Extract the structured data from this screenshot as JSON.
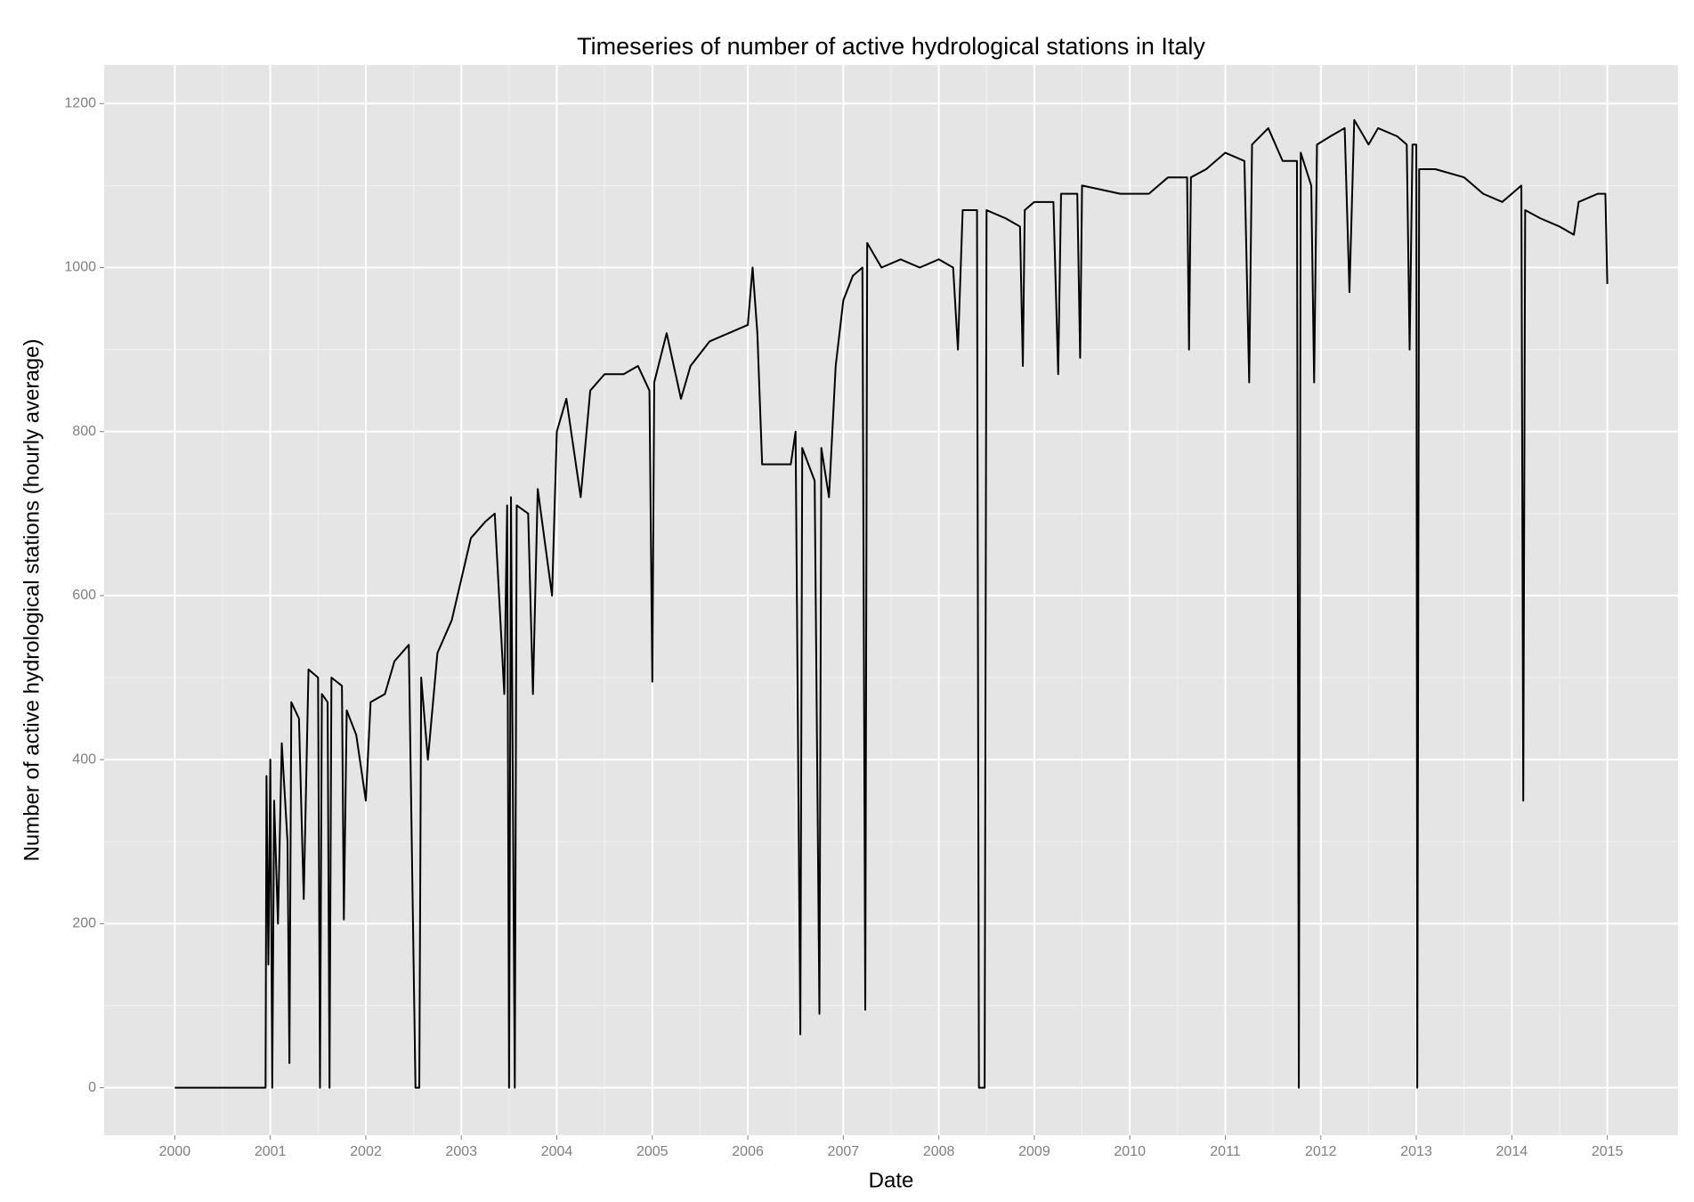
{
  "chart_data": {
    "type": "line",
    "title": "Timeseries of number of active hydrological stations in Italy",
    "x_label": "Date",
    "y_label": "Number of active hydrological stations (hourly average)",
    "color": "#000000",
    "grid": true,
    "xlim": [
      1999.26,
      2015.74
    ],
    "ylim": [
      -58,
      1247
    ],
    "xticks": [
      2000,
      2001,
      2002,
      2003,
      2004,
      2005,
      2006,
      2007,
      2008,
      2009,
      2010,
      2011,
      2012,
      2013,
      2014,
      2015
    ],
    "yticks": [
      0,
      200,
      400,
      600,
      800,
      1000,
      1200
    ],
    "x": [
      2000.0,
      2000.95,
      2000.96,
      2000.98,
      2001.0,
      2001.02,
      2001.04,
      2001.08,
      2001.12,
      2001.18,
      2001.2,
      2001.22,
      2001.3,
      2001.35,
      2001.4,
      2001.5,
      2001.52,
      2001.54,
      2001.6,
      2001.62,
      2001.64,
      2001.75,
      2001.77,
      2001.8,
      2001.9,
      2002.0,
      2002.05,
      2002.2,
      2002.3,
      2002.45,
      2002.52,
      2002.56,
      2002.58,
      2002.65,
      2002.75,
      2002.9,
      2003.0,
      2003.1,
      2003.25,
      2003.35,
      2003.45,
      2003.48,
      2003.5,
      2003.52,
      2003.56,
      2003.58,
      2003.7,
      2003.75,
      2003.8,
      2003.95,
      2004.0,
      2004.1,
      2004.2,
      2004.25,
      2004.35,
      2004.5,
      2004.7,
      2004.85,
      2004.97,
      2005.0,
      2005.02,
      2005.15,
      2005.3,
      2005.4,
      2005.6,
      2005.8,
      2006.0,
      2006.05,
      2006.1,
      2006.15,
      2006.3,
      2006.45,
      2006.5,
      2006.55,
      2006.57,
      2006.7,
      2006.75,
      2006.77,
      2006.85,
      2006.92,
      2007.0,
      2007.1,
      2007.2,
      2007.23,
      2007.25,
      2007.4,
      2007.6,
      2007.8,
      2008.0,
      2008.15,
      2008.2,
      2008.25,
      2008.4,
      2008.42,
      2008.48,
      2008.5,
      2008.7,
      2008.85,
      2008.88,
      2008.9,
      2009.0,
      2009.2,
      2009.25,
      2009.28,
      2009.45,
      2009.48,
      2009.5,
      2009.7,
      2009.9,
      2010.0,
      2010.2,
      2010.4,
      2010.6,
      2010.62,
      2010.64,
      2010.8,
      2011.0,
      2011.2,
      2011.25,
      2011.28,
      2011.45,
      2011.6,
      2011.75,
      2011.77,
      2011.79,
      2011.9,
      2011.93,
      2011.96,
      2012.1,
      2012.25,
      2012.3,
      2012.35,
      2012.5,
      2012.6,
      2012.8,
      2012.9,
      2012.93,
      2012.96,
      2013.0,
      2013.01,
      2013.03,
      2013.2,
      2013.5,
      2013.7,
      2013.9,
      2014.0,
      2014.1,
      2014.12,
      2014.14,
      2014.3,
      2014.5,
      2014.65,
      2014.7,
      2014.9,
      2014.98,
      2015.0
    ],
    "values": [
      0,
      0,
      380,
      150,
      400,
      0,
      350,
      200,
      420,
      300,
      30,
      470,
      450,
      230,
      510,
      500,
      0,
      480,
      470,
      0,
      500,
      490,
      205,
      460,
      430,
      350,
      470,
      480,
      520,
      540,
      0,
      0,
      500,
      400,
      530,
      570,
      620,
      670,
      690,
      700,
      480,
      710,
      0,
      720,
      0,
      710,
      700,
      480,
      730,
      600,
      800,
      840,
      760,
      720,
      850,
      870,
      870,
      880,
      850,
      495,
      860,
      920,
      840,
      880,
      910,
      920,
      930,
      1000,
      920,
      760,
      760,
      760,
      800,
      65,
      780,
      740,
      90,
      780,
      720,
      880,
      960,
      990,
      1000,
      95,
      1030,
      1000,
      1010,
      1000,
      1010,
      1000,
      900,
      1070,
      1070,
      0,
      0,
      1070,
      1060,
      1050,
      880,
      1070,
      1080,
      1080,
      870,
      1090,
      1090,
      890,
      1100,
      1095,
      1090,
      1090,
      1090,
      1110,
      1110,
      900,
      1110,
      1120,
      1140,
      1130,
      860,
      1150,
      1170,
      1130,
      1130,
      0,
      1140,
      1100,
      860,
      1150,
      1160,
      1170,
      970,
      1180,
      1150,
      1170,
      1160,
      1150,
      900,
      1150,
      1150,
      0,
      1120,
      1120,
      1110,
      1090,
      1080,
      1090,
      1100,
      350,
      1070,
      1060,
      1050,
      1040,
      1080,
      1090,
      1090,
      980
    ]
  }
}
